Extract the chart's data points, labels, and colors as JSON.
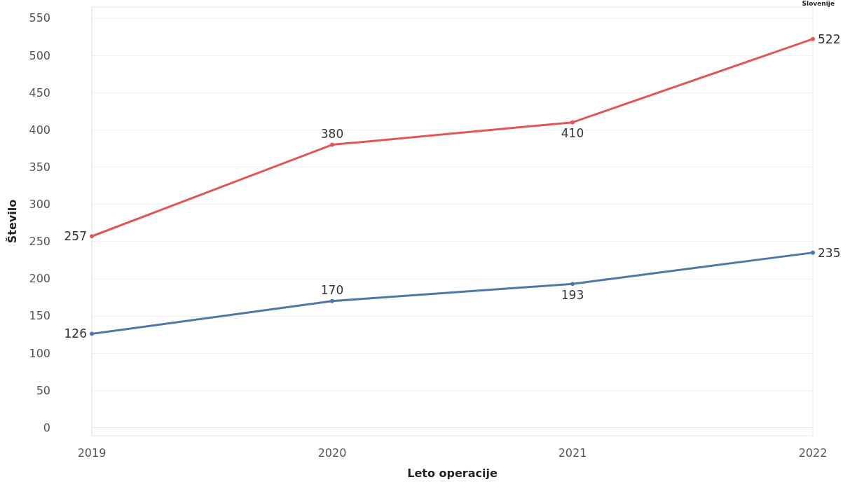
{
  "chart_data": {
    "type": "line",
    "xlabel": "Leto operacije",
    "ylabel": "Število",
    "annotations": [
      "Slovenije"
    ],
    "categories": [
      "2019",
      "2020",
      "2021",
      "2022"
    ],
    "series": [
      {
        "color": "#e15759",
        "values": [
          257,
          380,
          410,
          522
        ]
      },
      {
        "color": "#4e79a7",
        "values": [
          126,
          170,
          193,
          235
        ]
      }
    ],
    "ylim": [
      -11,
      565
    ],
    "yticks": [
      0,
      50,
      100,
      150,
      200,
      250,
      300,
      350,
      400,
      450,
      500,
      550
    ],
    "grid": "y",
    "marker": "circle",
    "line_style": "solid",
    "data_labels": true
  }
}
